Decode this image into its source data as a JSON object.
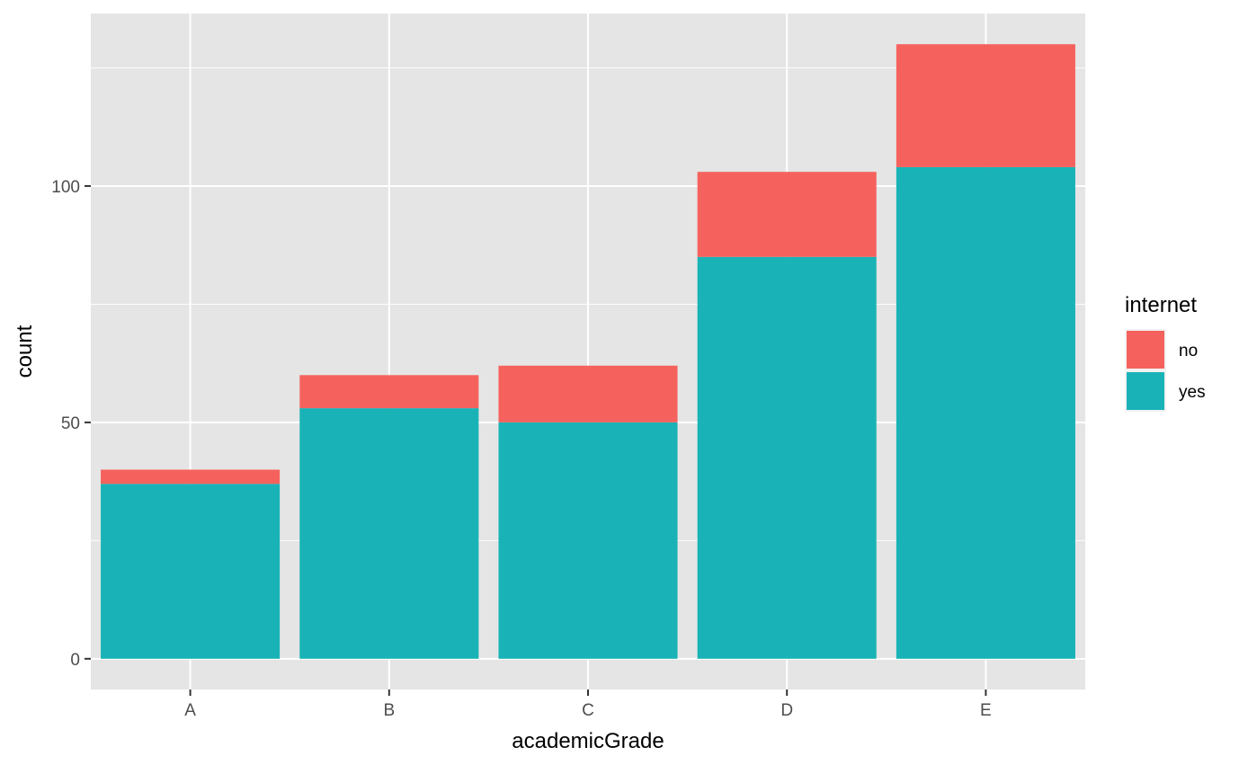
{
  "chart_data": {
    "type": "bar",
    "stacked": true,
    "title": "",
    "xlabel": "academicGrade",
    "ylabel": "count",
    "categories": [
      "A",
      "B",
      "C",
      "D",
      "E"
    ],
    "series": [
      {
        "name": "yes",
        "color": "#19b3b7",
        "values": [
          37,
          53,
          50,
          85,
          104
        ]
      },
      {
        "name": "no",
        "color": "#f5625d",
        "values": [
          3,
          7,
          12,
          18,
          26
        ]
      }
    ],
    "ylim": [
      -6.5,
      136.5
    ],
    "yticks": [
      0,
      50,
      100
    ],
    "ytick_labels": [
      "0",
      "50",
      "100"
    ],
    "grid": true,
    "legend": {
      "title": "internet",
      "position": "right",
      "entries": [
        {
          "label": "no",
          "color": "#f5625d"
        },
        {
          "label": "yes",
          "color": "#19b3b7"
        }
      ]
    },
    "panel_background": "#e5e5e5",
    "grid_color": "#ffffff"
  }
}
